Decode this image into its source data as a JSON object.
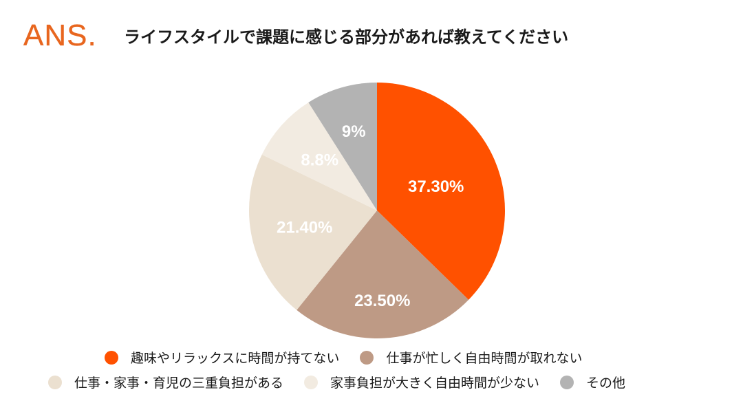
{
  "logo": "ANS.",
  "title": "ライフスタイルで課題に感じる部分があれば教えてください",
  "chart_data": {
    "type": "pie",
    "title": "ライフスタイルで課題に感じる部分があれば教えてください",
    "slices": [
      {
        "name": "趣味やリラックスに時間が持てない",
        "value": 37.3,
        "label": "37.30%",
        "color": "#ff5100"
      },
      {
        "name": "仕事が忙しく自由時間が取れない",
        "value": 23.5,
        "label": "23.50%",
        "color": "#be9a85"
      },
      {
        "name": "仕事・家事・育児の三重負担がある",
        "value": 21.4,
        "label": "21.40%",
        "color": "#ebe0d0"
      },
      {
        "name": "家事負担が大きく自由時間が少ない",
        "value": 8.8,
        "label": "8.8%",
        "color": "#f2ebe1"
      },
      {
        "name": "その他",
        "value": 9,
        "label": "9%",
        "color": "#b3b3b3"
      }
    ],
    "legend_placement": "bottom"
  }
}
